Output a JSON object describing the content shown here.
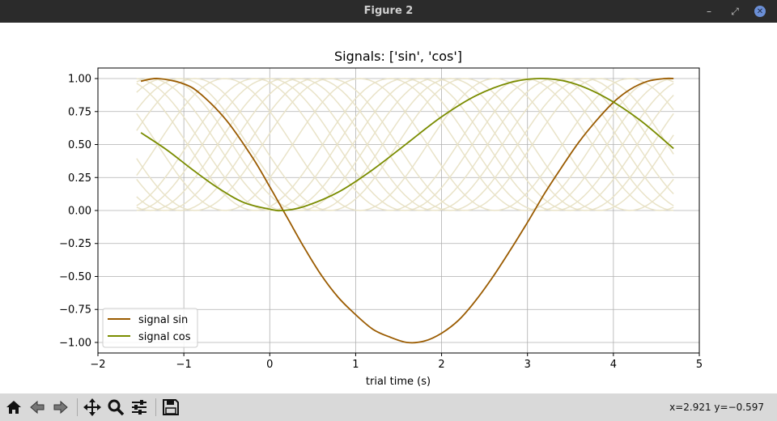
{
  "window": {
    "title": "Figure 2",
    "minimize_glyph": "–",
    "restore_glyph": "⤢",
    "close_glyph": "✕"
  },
  "toolbar": {
    "buttons": [
      "home-icon",
      "back-icon",
      "forward-icon",
      "pan-icon",
      "zoom-icon",
      "configure-subplots-icon",
      "save-icon"
    ],
    "coords": "x=2.921  y=−0.597"
  },
  "chart_data": {
    "type": "line",
    "title": "Signals: ['sin', 'cos']",
    "xlabel": "trial time (s)",
    "ylabel": "",
    "xlim": [
      -2,
      5
    ],
    "ylim": [
      -1.08,
      1.08
    ],
    "x_ticks": [
      -2,
      -1,
      0,
      1,
      2,
      3,
      4,
      5
    ],
    "x_tick_labels": [
      "−2",
      "−1",
      "0",
      "1",
      "2",
      "3",
      "4",
      "5"
    ],
    "y_ticks": [
      1.0,
      0.75,
      0.5,
      0.25,
      0.0,
      -0.25,
      -0.5,
      -0.75,
      -1.0
    ],
    "y_tick_labels": [
      "1.00",
      "0.75",
      "0.50",
      "0.25",
      "0.00",
      "−0.25",
      "−0.50",
      "−0.75",
      "−1.00"
    ],
    "grid": true,
    "legend_position": "lower-left",
    "series": [
      {
        "name": "signal sin",
        "color": "#9a5b00",
        "x": [
          -1.5,
          -1.3,
          -1.0,
          -0.8,
          -0.5,
          -0.2,
          0.0,
          0.2,
          0.4,
          0.6,
          0.8,
          1.0,
          1.2,
          1.4,
          1.6,
          1.8,
          2.0,
          2.2,
          2.4,
          2.6,
          2.8,
          3.0,
          3.2,
          3.4,
          3.6,
          3.8,
          4.0,
          4.2,
          4.4,
          4.6,
          4.7
        ],
        "y": [
          0.98,
          1.0,
          0.96,
          0.88,
          0.68,
          0.4,
          0.18,
          -0.05,
          -0.28,
          -0.49,
          -0.66,
          -0.79,
          -0.9,
          -0.96,
          -1.0,
          -0.99,
          -0.93,
          -0.83,
          -0.68,
          -0.5,
          -0.3,
          -0.09,
          0.13,
          0.33,
          0.52,
          0.68,
          0.82,
          0.92,
          0.98,
          1.0,
          1.0
        ]
      },
      {
        "name": "signal cos",
        "color": "#7a8c00",
        "x": [
          -1.5,
          -1.2,
          -0.9,
          -0.6,
          -0.3,
          0.0,
          0.15,
          0.4,
          0.8,
          1.2,
          1.6,
          2.0,
          2.4,
          2.8,
          3.15,
          3.5,
          3.9,
          4.3,
          4.7
        ],
        "y": [
          0.59,
          0.46,
          0.31,
          0.17,
          0.06,
          0.01,
          0.0,
          0.03,
          0.14,
          0.31,
          0.51,
          0.71,
          0.87,
          0.97,
          1.0,
          0.97,
          0.86,
          0.69,
          0.47
        ]
      }
    ],
    "background_traces": {
      "color": "#e9e3c8",
      "x_start": -1.55,
      "x_end": 4.7,
      "phase_offsets": [
        0.0,
        0.35,
        0.7,
        1.05,
        1.4,
        1.75,
        2.1
      ]
    }
  }
}
